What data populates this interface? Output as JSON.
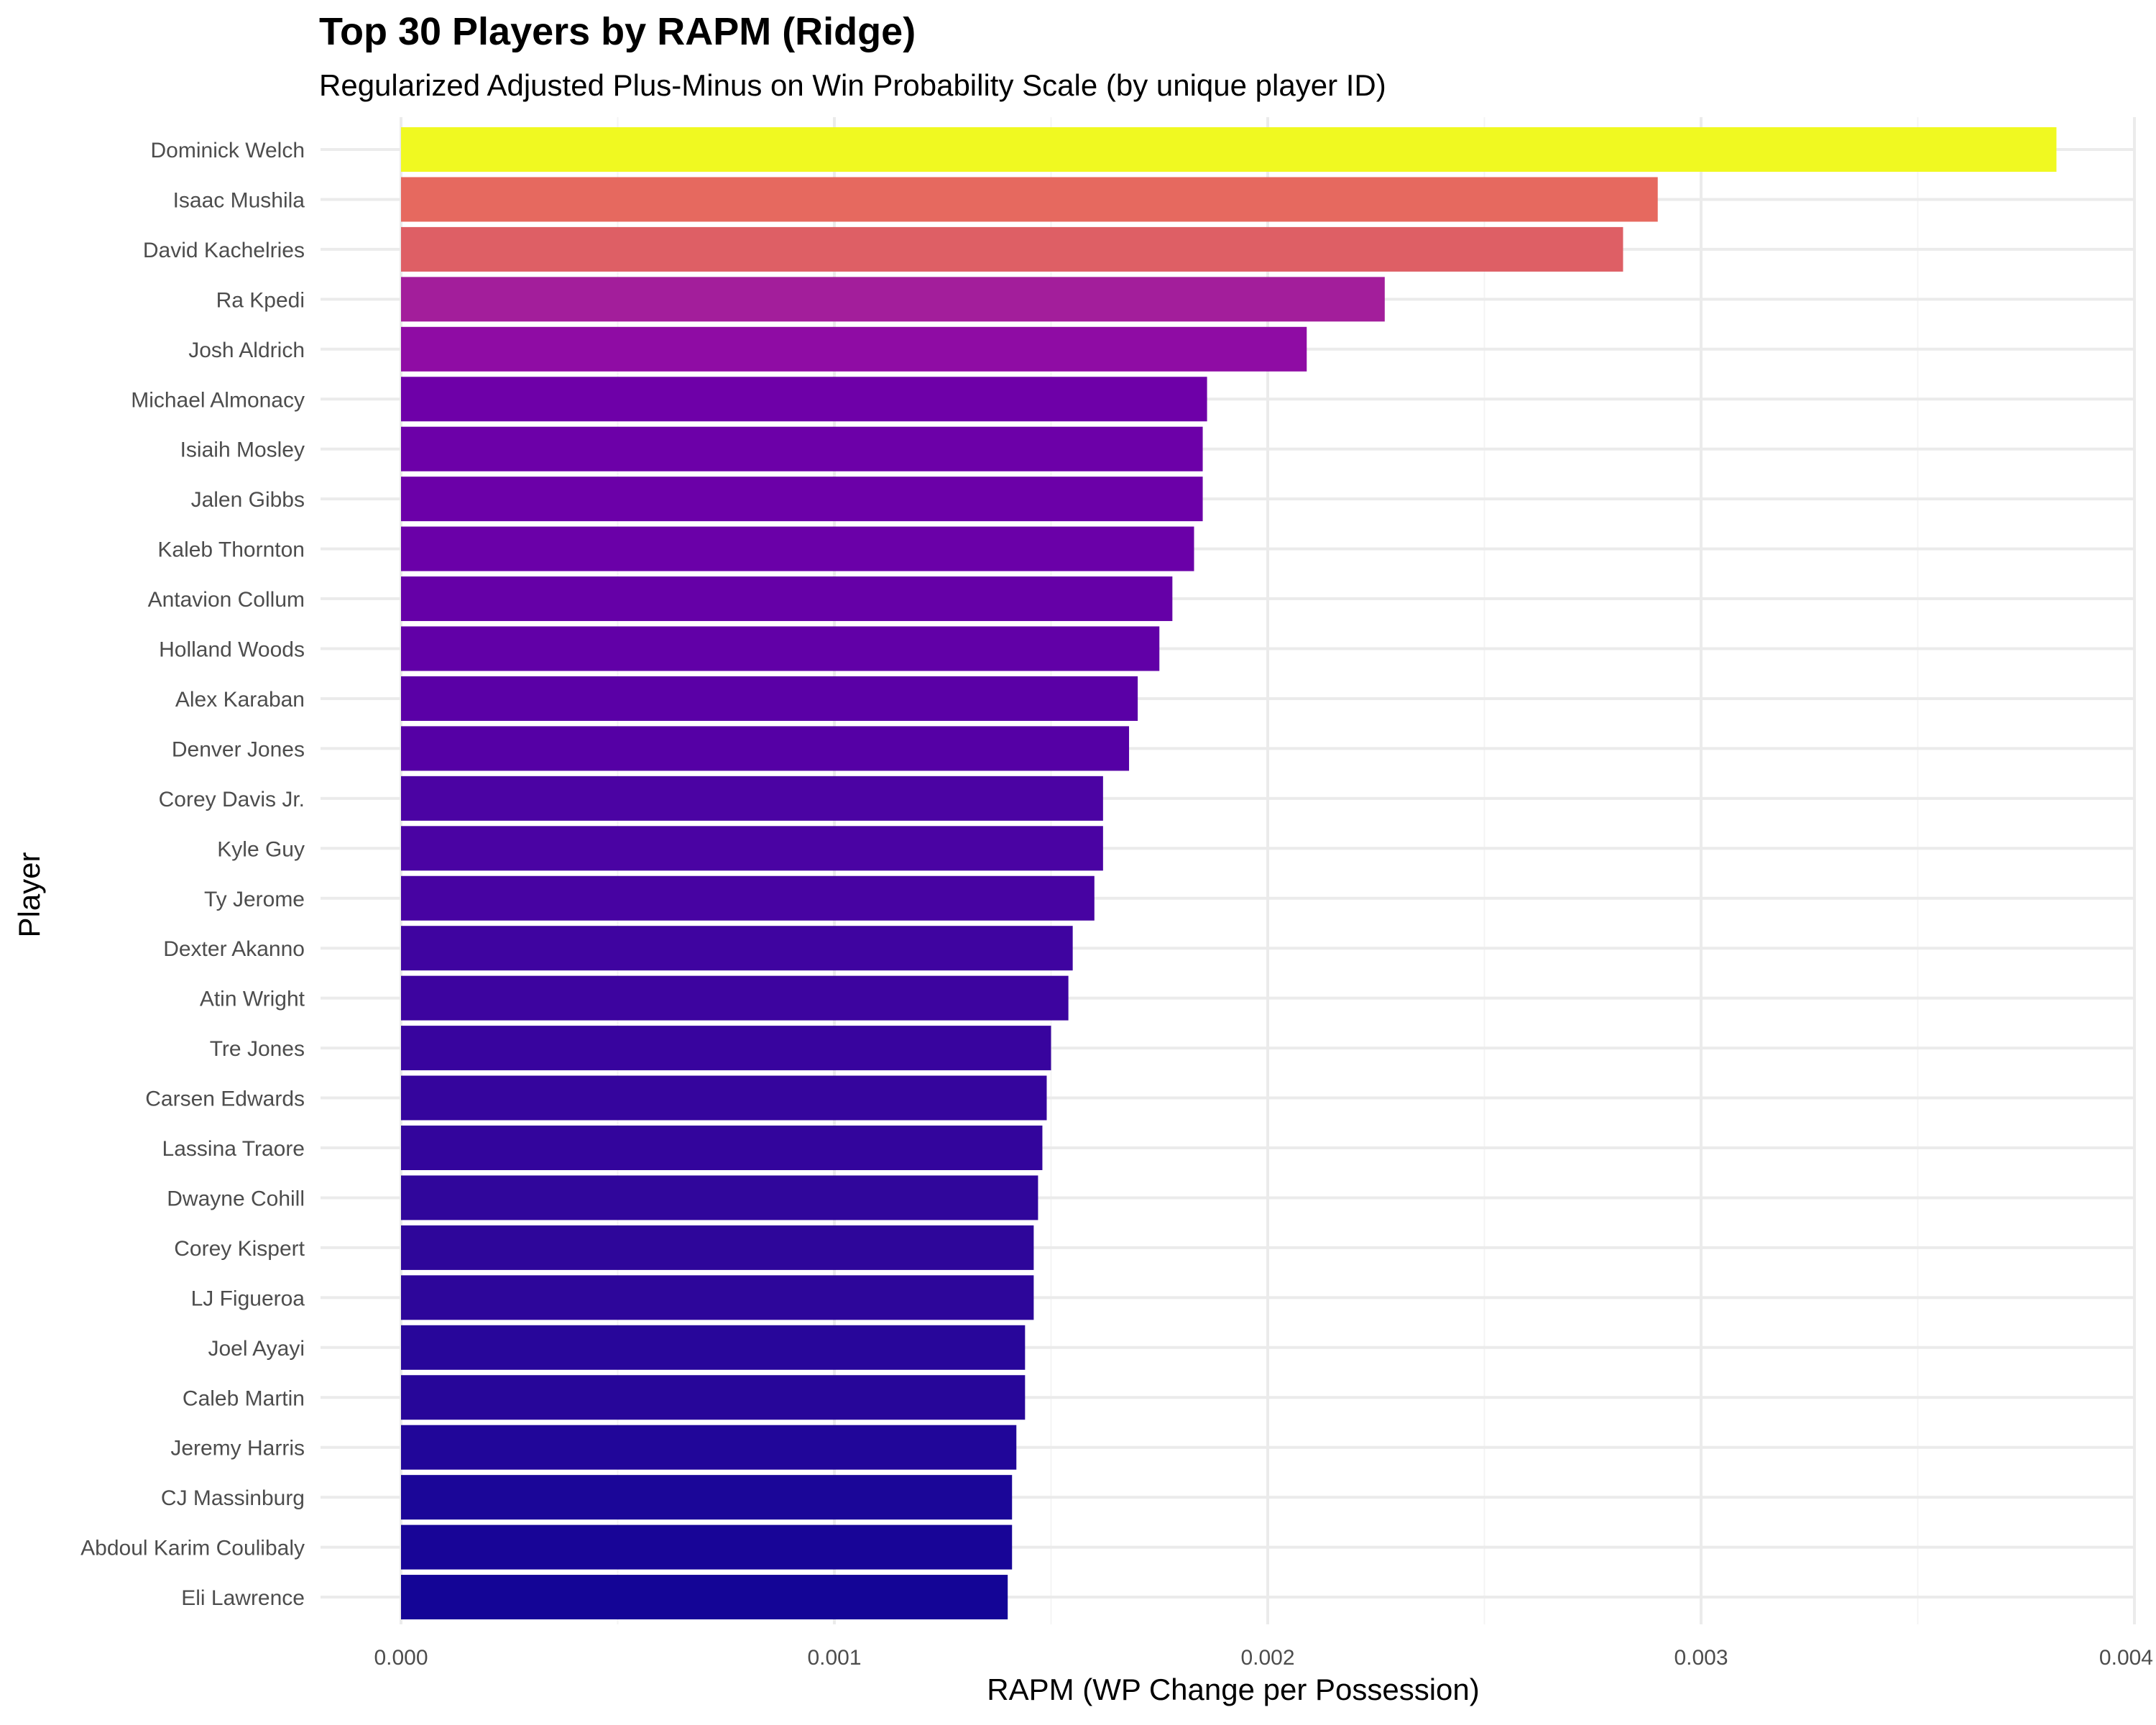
{
  "chart_data": {
    "type": "bar",
    "orientation": "horizontal",
    "title": "Top 30 Players by RAPM (Ridge)",
    "subtitle": "Regularized Adjusted Plus-Minus on Win Probability Scale (by unique player ID)",
    "xlabel": "RAPM (WP Change per Possession)",
    "ylabel": "Player",
    "xlim": [
      0,
      0.004
    ],
    "x_ticks": [
      "0.000",
      "0.001",
      "0.002",
      "0.003",
      "0.004"
    ],
    "grid": true,
    "legend": "none",
    "color_scale": "plasma",
    "categories": [
      "Dominick Welch",
      "Isaac Mushila",
      "David Kachelries",
      "Ra Kpedi",
      "Josh Aldrich",
      "Michael Almonacy",
      "Isiaih Mosley",
      "Jalen Gibbs",
      "Kaleb Thornton",
      "Antavion Collum",
      "Holland Woods",
      "Alex Karaban",
      "Denver Jones",
      "Corey Davis Jr.",
      "Kyle Guy",
      "Ty Jerome",
      "Dexter Akanno",
      "Atin Wright",
      "Tre Jones",
      "Carsen Edwards",
      "Lassina Traore",
      "Dwayne Cohill",
      "Corey Kispert",
      "LJ Figueroa",
      "Joel Ayayi",
      "Caleb Martin",
      "Jeremy Harris",
      "CJ Massinburg",
      "Abdoul Karim Coulibaly",
      "Eli Lawrence"
    ],
    "values": [
      0.00382,
      0.0029,
      0.00282,
      0.00227,
      0.00209,
      0.00186,
      0.00185,
      0.00185,
      0.00183,
      0.00178,
      0.00175,
      0.0017,
      0.00168,
      0.00162,
      0.00162,
      0.0016,
      0.00155,
      0.00154,
      0.0015,
      0.00149,
      0.00148,
      0.00147,
      0.00146,
      0.00146,
      0.00144,
      0.00144,
      0.00142,
      0.00141,
      0.00141,
      0.0014
    ],
    "colors": [
      "#f0f921",
      "#e6695f",
      "#de5f65",
      "#a31e9b",
      "#8f0ca4",
      "#6e00a8",
      "#6c00a8",
      "#6b00a8",
      "#6a00a8",
      "#6500a7",
      "#6100a7",
      "#5a00a6",
      "#5500a5",
      "#4b03a3",
      "#4a03a3",
      "#4703a2",
      "#3f04a0",
      "#3d049f",
      "#38049e",
      "#35059d",
      "#33059c",
      "#30069b",
      "#2e069a",
      "#2d069a",
      "#28069a",
      "#270699",
      "#210699",
      "#1b0698",
      "#180597",
      "#140596"
    ]
  }
}
